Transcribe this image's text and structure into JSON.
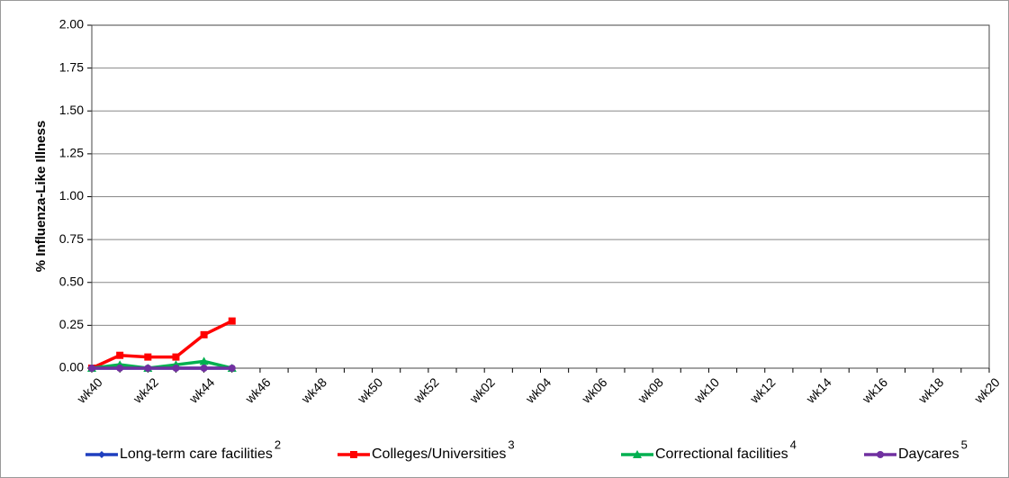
{
  "chart_data": {
    "type": "line",
    "ylabel": "% Influenza-Like Illness",
    "categories": [
      "wk40",
      null,
      "wk42",
      null,
      "wk44",
      null,
      "wk46",
      null,
      "wk48",
      null,
      "wk50",
      null,
      "wk52",
      null,
      "wk02",
      null,
      "wk04",
      null,
      "wk06",
      null,
      "wk08",
      null,
      "wk10",
      null,
      "wk12",
      null,
      "wk14",
      null,
      "wk16",
      null,
      "wk18",
      null,
      "wk20"
    ],
    "ylim": [
      0,
      2
    ],
    "yticks": [
      {
        "value": 0,
        "label": "0.00"
      },
      {
        "value": 0.25,
        "label": "0.25"
      },
      {
        "value": 0.5,
        "label": "0.50"
      },
      {
        "value": 0.75,
        "label": "0.75"
      },
      {
        "value": 1,
        "label": "1.00"
      },
      {
        "value": 1.25,
        "label": "1.25"
      },
      {
        "value": 1.5,
        "label": "1.50"
      },
      {
        "value": 1.75,
        "label": "1.75"
      },
      {
        "value": 2,
        "label": "2.00"
      }
    ],
    "grid": true,
    "legend": "bottom",
    "series": [
      {
        "name": "Long-term care facilities",
        "footnote": "2",
        "color": "#1f3fbf",
        "marker": "diamond",
        "values": [
          0,
          0,
          0,
          0,
          0,
          0,
          null,
          null,
          null,
          null,
          null,
          null,
          null,
          null,
          null,
          null,
          null,
          null,
          null,
          null,
          null,
          null,
          null,
          null,
          null,
          null,
          null,
          null,
          null,
          null,
          null,
          null,
          null
        ]
      },
      {
        "name": "Colleges/Universities",
        "footnote": "3",
        "color": "#ff0000",
        "marker": "square",
        "values": [
          0,
          0.075,
          0.065,
          0.065,
          0.195,
          0.275,
          null,
          null,
          null,
          null,
          null,
          null,
          null,
          null,
          null,
          null,
          null,
          null,
          null,
          null,
          null,
          null,
          null,
          null,
          null,
          null,
          null,
          null,
          null,
          null,
          null,
          null,
          null
        ]
      },
      {
        "name": "Correctional facilities",
        "footnote": "4",
        "color": "#00b050",
        "marker": "triangle",
        "values": [
          0,
          0.02,
          0,
          0.02,
          0.04,
          0,
          null,
          null,
          null,
          null,
          null,
          null,
          null,
          null,
          null,
          null,
          null,
          null,
          null,
          null,
          null,
          null,
          null,
          null,
          null,
          null,
          null,
          null,
          null,
          null,
          null,
          null,
          null
        ]
      },
      {
        "name": "Daycares",
        "footnote": "5",
        "color": "#7030a0",
        "marker": "circle",
        "values": [
          0,
          0,
          0,
          0,
          0,
          0,
          null,
          null,
          null,
          null,
          null,
          null,
          null,
          null,
          null,
          null,
          null,
          null,
          null,
          null,
          null,
          null,
          null,
          null,
          null,
          null,
          null,
          null,
          null,
          null,
          null,
          null,
          null
        ]
      }
    ]
  }
}
